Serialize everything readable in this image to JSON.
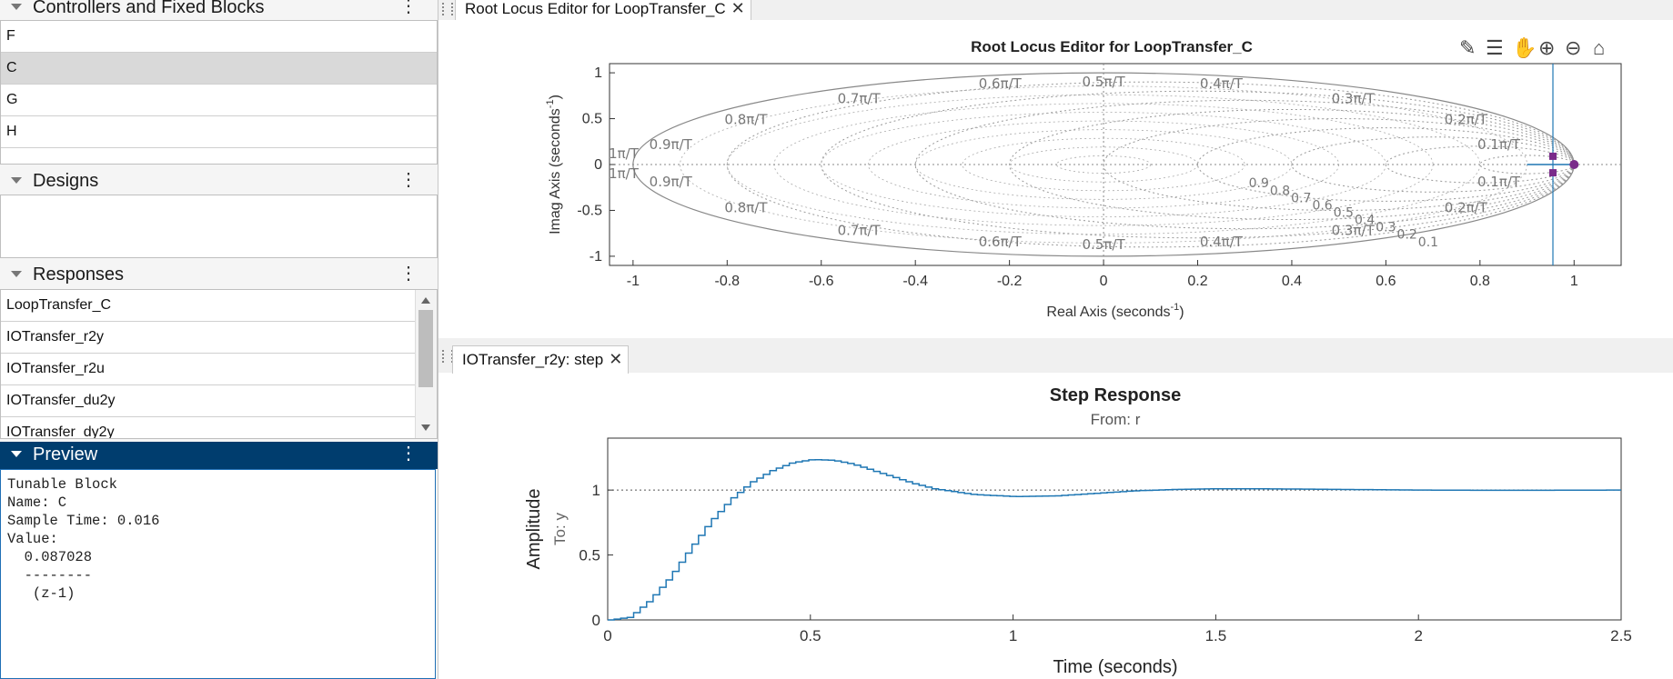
{
  "left": {
    "controllers": {
      "title": "Controllers and Fixed Blocks",
      "items": [
        "F",
        "C",
        "G",
        "H"
      ],
      "selected": "C"
    },
    "designs": {
      "title": "Designs"
    },
    "responses": {
      "title": "Responses",
      "items": [
        "LoopTransfer_C",
        "IOTransfer_r2y",
        "IOTransfer_r2u",
        "IOTransfer_du2y",
        "IOTransfer_dy2y"
      ]
    },
    "preview": {
      "title": "Preview",
      "lines": [
        "Tunable Block",
        "Name: C",
        "Sample Time: 0.016",
        "Value:",
        "  0.087028",
        "  --------",
        "   (z-1)"
      ]
    }
  },
  "tabs": {
    "root_locus": "Root Locus Editor for LoopTransfer_C",
    "step": "IOTransfer_r2y: step"
  },
  "toolbar_icons": [
    "edit-icon",
    "data-tips-icon",
    "pan-icon",
    "zoom-in-icon",
    "zoom-out-icon",
    "home-icon"
  ],
  "root_locus": {
    "title": "Root Locus Editor for LoopTransfer_C",
    "xlabel": "Real Axis (seconds",
    "ylabel": "Imag Axis (seconds",
    "xlabel_sup": "-1",
    "xlabel_close": ")",
    "xticks": [
      "-1",
      "-0.8",
      "-0.6",
      "-0.4",
      "-0.2",
      "0",
      "0.2",
      "0.4",
      "0.6",
      "0.8",
      "1"
    ],
    "yticks": [
      "1",
      "0.5",
      "0",
      "-0.5",
      "-1"
    ],
    "grid_labels_upper": [
      "0.6π/T",
      "0.5π/T",
      "0.4π/T",
      "0.7π/T",
      "0.3π/T",
      "0.8π/T",
      "0.2π/T",
      "0.9π/T",
      "0.1π/T",
      "1π/T"
    ],
    "grid_labels_lower": [
      "1π/T",
      "0.9π/T",
      "0.1π/T",
      "0.8π/T",
      "0.2π/T",
      "0.7π/T",
      "0.3π/T",
      "0.6π/T",
      "0.5π/T",
      "0.4π/T"
    ],
    "damping_labels": [
      "0.9",
      "0.8",
      "0.7",
      "0.6",
      "0.5",
      "0.4",
      "0.3",
      "0.2",
      "0.1"
    ],
    "poles": [
      {
        "re": 1.0,
        "im": 0.0
      }
    ],
    "closed_loop_poles": [
      {
        "re": 0.955,
        "im": 0.09
      },
      {
        "re": 0.955,
        "im": -0.09
      }
    ],
    "cursor_x": 0.955,
    "xlim": [
      -1.1,
      1.1
    ],
    "ylim": [
      -1.1,
      1.1
    ]
  },
  "chart_data": {
    "type": "line",
    "title": "Step Response",
    "subtitle": "From: r",
    "xlabel": "Time (seconds)",
    "ylabel": "Amplitude",
    "ylabel2": "To: y",
    "xlim": [
      0,
      2.5
    ],
    "ylim": [
      0,
      1.4
    ],
    "xticks": [
      "0",
      "0.5",
      "1",
      "1.5",
      "2",
      "2.5"
    ],
    "yticks": [
      "0",
      "0.5",
      "1"
    ],
    "reference_line": 1,
    "series": [
      {
        "x": [
          0,
          0.05,
          0.1,
          0.15,
          0.2,
          0.25,
          0.3,
          0.35,
          0.4,
          0.45,
          0.5,
          0.55,
          0.6,
          0.65,
          0.7,
          0.75,
          0.8,
          0.9,
          1.0,
          1.1,
          1.2,
          1.3,
          1.4,
          1.5,
          1.6,
          1.8,
          2.0,
          2.2,
          2.5
        ],
        "values": [
          0,
          0.02,
          0.15,
          0.33,
          0.55,
          0.76,
          0.93,
          1.06,
          1.15,
          1.21,
          1.235,
          1.23,
          1.2,
          1.15,
          1.1,
          1.05,
          1.01,
          0.965,
          0.95,
          0.955,
          0.975,
          0.995,
          1.005,
          1.01,
          1.01,
          1.005,
          1.0,
          0.998,
          1.0
        ]
      }
    ],
    "color": "#1f77b4"
  }
}
